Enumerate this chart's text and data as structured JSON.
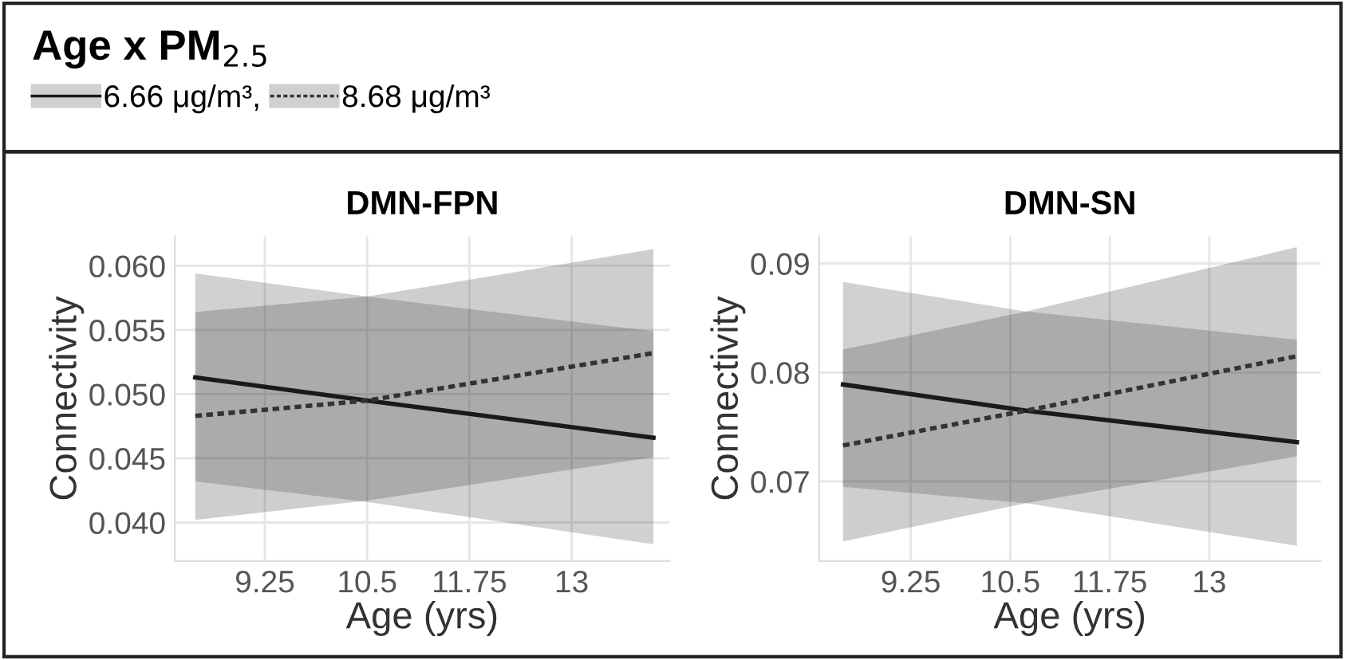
{
  "chart_data": [
    {
      "type": "line",
      "title": "DMN-FPN",
      "legend_title": "Age x PM$_{2.5}$",
      "legend": "top left",
      "xlabel": "Age (yrs)",
      "ylabel": "Connectivity",
      "grid": true,
      "xlim": [
        8.15,
        14.2
      ],
      "xticks": [
        9.25,
        10.5,
        11.75,
        13
      ],
      "ylim": [
        0.037,
        0.0623
      ],
      "yticks": [
        {
          "value": 0.04,
          "label": "0.040"
        },
        {
          "value": 0.045,
          "label": "0.045"
        },
        {
          "value": 0.05,
          "label": "0.050"
        },
        {
          "value": 0.055,
          "label": "0.055"
        },
        {
          "value": 0.06,
          "label": "0.060"
        }
      ],
      "series": [
        {
          "name": "6.66 μg/m³,",
          "color": "#1a1a1a",
          "line_style": "solid",
          "x": [
            8.4,
            10.5,
            14.0
          ],
          "values": [
            0.0513,
            0.0495,
            0.0466
          ],
          "lower": [
            0.0432,
            0.0416,
            0.0383
          ],
          "upper": [
            0.0594,
            0.0576,
            0.0549
          ]
        },
        {
          "name": "8.68 μg/m³",
          "color": "#333333",
          "line_style": "dotted",
          "x": [
            8.4,
            10.5,
            14.0
          ],
          "values": [
            0.0483,
            0.0495,
            0.0532
          ],
          "lower": [
            0.0402,
            0.0417,
            0.0451
          ],
          "upper": [
            0.0564,
            0.0576,
            0.0613
          ]
        }
      ]
    },
    {
      "type": "line",
      "title": "DMN-SN",
      "xlabel": "Age (yrs)",
      "ylabel": "Connectivity",
      "grid": true,
      "xlim": [
        8.1,
        14.4
      ],
      "xticks": [
        9.25,
        10.5,
        11.75,
        13
      ],
      "ylim": [
        0.0627,
        0.0925
      ],
      "yticks": [
        0.07,
        0.08,
        0.09
      ],
      "series": [
        {
          "color": "#1a1a1a",
          "line_style": "solid",
          "x": [
            8.4,
            10.7,
            14.1
          ],
          "values": [
            0.0789,
            0.0765,
            0.0736
          ],
          "lower": [
            0.0695,
            0.068,
            0.0641
          ],
          "upper": [
            0.0883,
            0.0856,
            0.083
          ]
        },
        {
          "color": "#333333",
          "line_style": "dotted",
          "x": [
            8.4,
            10.7,
            14.1
          ],
          "values": [
            0.0733,
            0.0765,
            0.0815
          ],
          "lower": [
            0.0645,
            0.068,
            0.0723
          ],
          "upper": [
            0.0821,
            0.0856,
            0.0915
          ]
        }
      ]
    }
  ]
}
